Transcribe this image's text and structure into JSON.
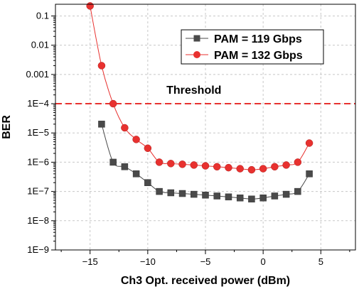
{
  "chart_data": {
    "type": "line",
    "xlabel": "Ch3 Opt. received power (dBm)",
    "ylabel": "BER",
    "xlim": [
      -18,
      8
    ],
    "ylim_exp": [
      -9,
      -0.6
    ],
    "y_scale": "log",
    "x_ticks": [
      -15,
      -10,
      -5,
      0,
      5
    ],
    "x_tick_labels": [
      "−15",
      "−10",
      "−5",
      "0",
      "5"
    ],
    "y_ticks_exp": [
      -9,
      -8,
      -7,
      -6,
      -5,
      -4,
      -3,
      -2,
      -1
    ],
    "y_tick_labels": [
      "1E−9",
      "1E−8",
      "1E−7",
      "1E−6",
      "1E−5",
      "1E−4",
      "0.001",
      "0.01",
      "0.1"
    ],
    "grid": true,
    "legend_position": "top-right",
    "threshold": {
      "label": "Threshold",
      "value": 0.0001,
      "color": "#e8312f"
    },
    "series": [
      {
        "name": "PAM = 119 Gbps",
        "marker": "square",
        "color": "#4a4a4a",
        "x": [
          -14,
          -13,
          -12,
          -11,
          -10,
          -9,
          -8,
          -7,
          -6,
          -5,
          -4,
          -3,
          -2,
          -1,
          0,
          1,
          2,
          3,
          4
        ],
        "y": [
          2e-05,
          1e-06,
          7e-07,
          4e-07,
          2e-07,
          1e-07,
          9e-08,
          8.5e-08,
          8e-08,
          7.5e-08,
          7e-08,
          6.5e-08,
          6e-08,
          5.5e-08,
          6e-08,
          7e-08,
          8e-08,
          1e-07,
          4e-07
        ]
      },
      {
        "name": "PAM = 132 Gbps",
        "marker": "circle",
        "color": "#e8312f",
        "x": [
          -15,
          -14,
          -13,
          -12,
          -11,
          -10,
          -9,
          -8,
          -7,
          -6,
          -5,
          -4,
          -3,
          -2,
          -1,
          0,
          1,
          2,
          3,
          4
        ],
        "y": [
          0.22,
          0.002,
          0.0001,
          1.5e-05,
          6e-06,
          3e-06,
          1e-06,
          9e-07,
          8.5e-07,
          8e-07,
          7.5e-07,
          7e-07,
          6.5e-07,
          6e-07,
          5.5e-07,
          6e-07,
          7e-07,
          8e-07,
          1e-06,
          4.5e-06
        ]
      }
    ]
  }
}
